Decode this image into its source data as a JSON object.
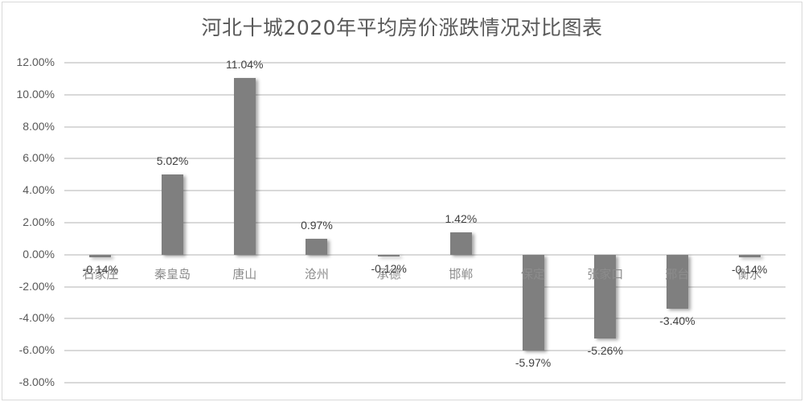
{
  "chart_data": {
    "type": "bar",
    "title": "河北十城2020年平均房价涨跌情况对比图表",
    "categories": [
      "石家庄",
      "秦皇岛",
      "唐山",
      "沧州",
      "承德",
      "邯郸",
      "保定",
      "张家口",
      "邢台",
      "衡水"
    ],
    "values": [
      -0.14,
      5.02,
      11.04,
      0.97,
      -0.12,
      1.42,
      -5.97,
      -5.26,
      -3.4,
      -0.14
    ],
    "value_labels": [
      "-0.14%",
      "5.02%",
      "11.04%",
      "0.97%",
      "-0.12%",
      "1.42%",
      "-5.97%",
      "-5.26%",
      "-3.40%",
      "-0.14%"
    ],
    "xlabel": "",
    "ylabel": "",
    "ylim": [
      -8,
      12
    ],
    "yticks": [
      "12.00%",
      "10.00%",
      "8.00%",
      "6.00%",
      "4.00%",
      "2.00%",
      "0.00%",
      "-2.00%",
      "-4.00%",
      "-6.00%",
      "-8.00%"
    ],
    "grid": true,
    "legend": null,
    "bar_color": "#7f7f7f"
  }
}
